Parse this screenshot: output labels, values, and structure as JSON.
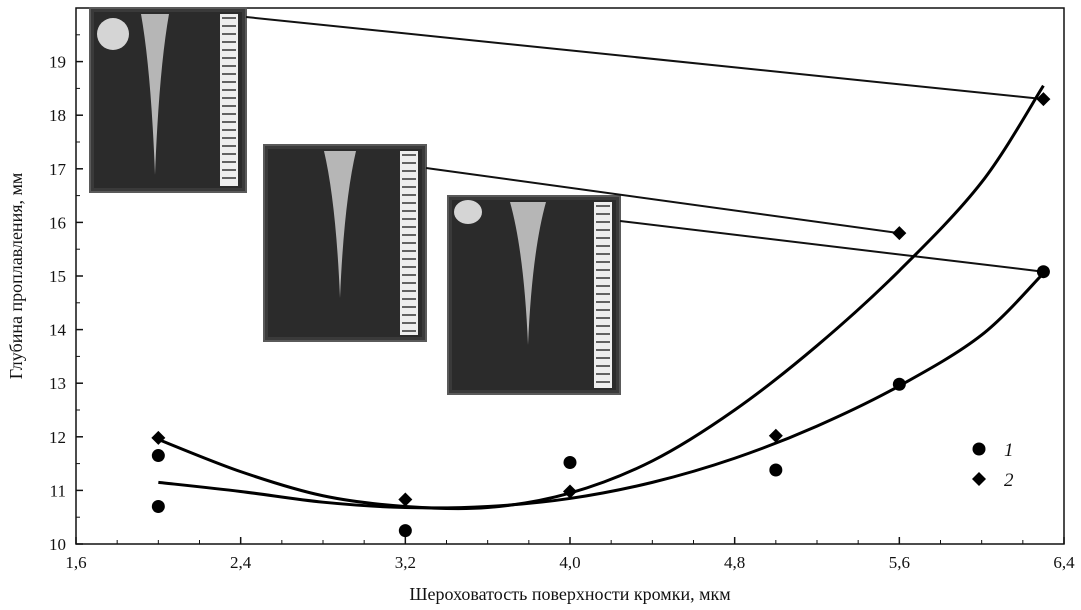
{
  "chart_data": {
    "type": "scatter",
    "title": "",
    "xlabel": "Шероховатость поверхности кромки, мкм",
    "ylabel": "Глубина проплавления, мм",
    "xlim": [
      1.6,
      6.4
    ],
    "ylim": [
      10,
      20
    ],
    "x_ticks": [
      "1,6",
      "2,4",
      "3,2",
      "4,0",
      "4,8",
      "5,6",
      "6,4"
    ],
    "x_tick_values": [
      1.6,
      2.4,
      3.2,
      4.0,
      4.8,
      5.6,
      6.4
    ],
    "y_ticks": [
      "10",
      "11",
      "12",
      "13",
      "14",
      "15",
      "16",
      "17",
      "18",
      "19"
    ],
    "y_tick_values": [
      10,
      11,
      12,
      13,
      14,
      15,
      16,
      17,
      18,
      19
    ],
    "grid": false,
    "legend_position": "right",
    "series": [
      {
        "name": "1",
        "marker": "circle",
        "color": "#000000",
        "points": [
          [
            2.0,
            11.65
          ],
          [
            2.0,
            10.7
          ],
          [
            3.2,
            10.25
          ],
          [
            4.0,
            11.52
          ],
          [
            5.0,
            11.38
          ],
          [
            5.6,
            12.98
          ],
          [
            6.3,
            15.08
          ]
        ],
        "fit_curve": [
          [
            2.0,
            11.15
          ],
          [
            2.4,
            10.98
          ],
          [
            2.8,
            10.78
          ],
          [
            3.2,
            10.68
          ],
          [
            3.6,
            10.7
          ],
          [
            4.0,
            10.85
          ],
          [
            4.4,
            11.15
          ],
          [
            4.8,
            11.6
          ],
          [
            5.2,
            12.2
          ],
          [
            5.6,
            12.95
          ],
          [
            6.0,
            13.9
          ],
          [
            6.3,
            15.05
          ]
        ]
      },
      {
        "name": "2",
        "marker": "diamond",
        "color": "#000000",
        "points": [
          [
            2.0,
            11.98
          ],
          [
            3.2,
            10.83
          ],
          [
            4.0,
            10.98
          ],
          [
            5.0,
            12.02
          ],
          [
            5.6,
            15.8
          ],
          [
            6.3,
            18.3
          ]
        ],
        "fit_curve": [
          [
            2.0,
            11.95
          ],
          [
            2.4,
            11.35
          ],
          [
            2.8,
            10.9
          ],
          [
            3.2,
            10.7
          ],
          [
            3.6,
            10.68
          ],
          [
            4.0,
            10.95
          ],
          [
            4.4,
            11.55
          ],
          [
            4.8,
            12.5
          ],
          [
            5.2,
            13.7
          ],
          [
            5.6,
            15.1
          ],
          [
            6.0,
            16.75
          ],
          [
            6.3,
            18.55
          ]
        ]
      }
    ],
    "legend": [
      {
        "label": "1",
        "marker": "circle"
      },
      {
        "label": "2",
        "marker": "diamond"
      }
    ]
  }
}
